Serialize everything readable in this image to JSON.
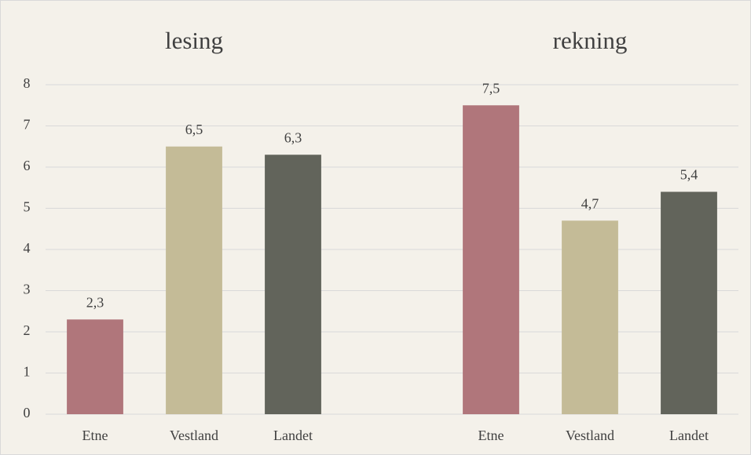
{
  "chart_data": {
    "type": "bar",
    "annotations": [
      "lesing",
      "rekning"
    ],
    "categories": [
      "Etne",
      "Vestland",
      "Landet",
      null,
      "Etne",
      "Vestland",
      "Landet"
    ],
    "values": [
      2.3,
      6.5,
      6.3,
      null,
      7.5,
      4.7,
      5.4
    ],
    "value_labels": [
      "2,3",
      "6,5",
      "6,3",
      null,
      "7,5",
      "4,7",
      "5,4"
    ],
    "colors": [
      "#b0767b",
      "#c4bb97",
      "#62645b",
      null,
      "#b0767b",
      "#c4bb97",
      "#62645b"
    ],
    "ylim": [
      0,
      8
    ],
    "yticks": [
      0,
      1,
      2,
      3,
      4,
      5,
      6,
      7,
      8
    ],
    "grid": true
  }
}
